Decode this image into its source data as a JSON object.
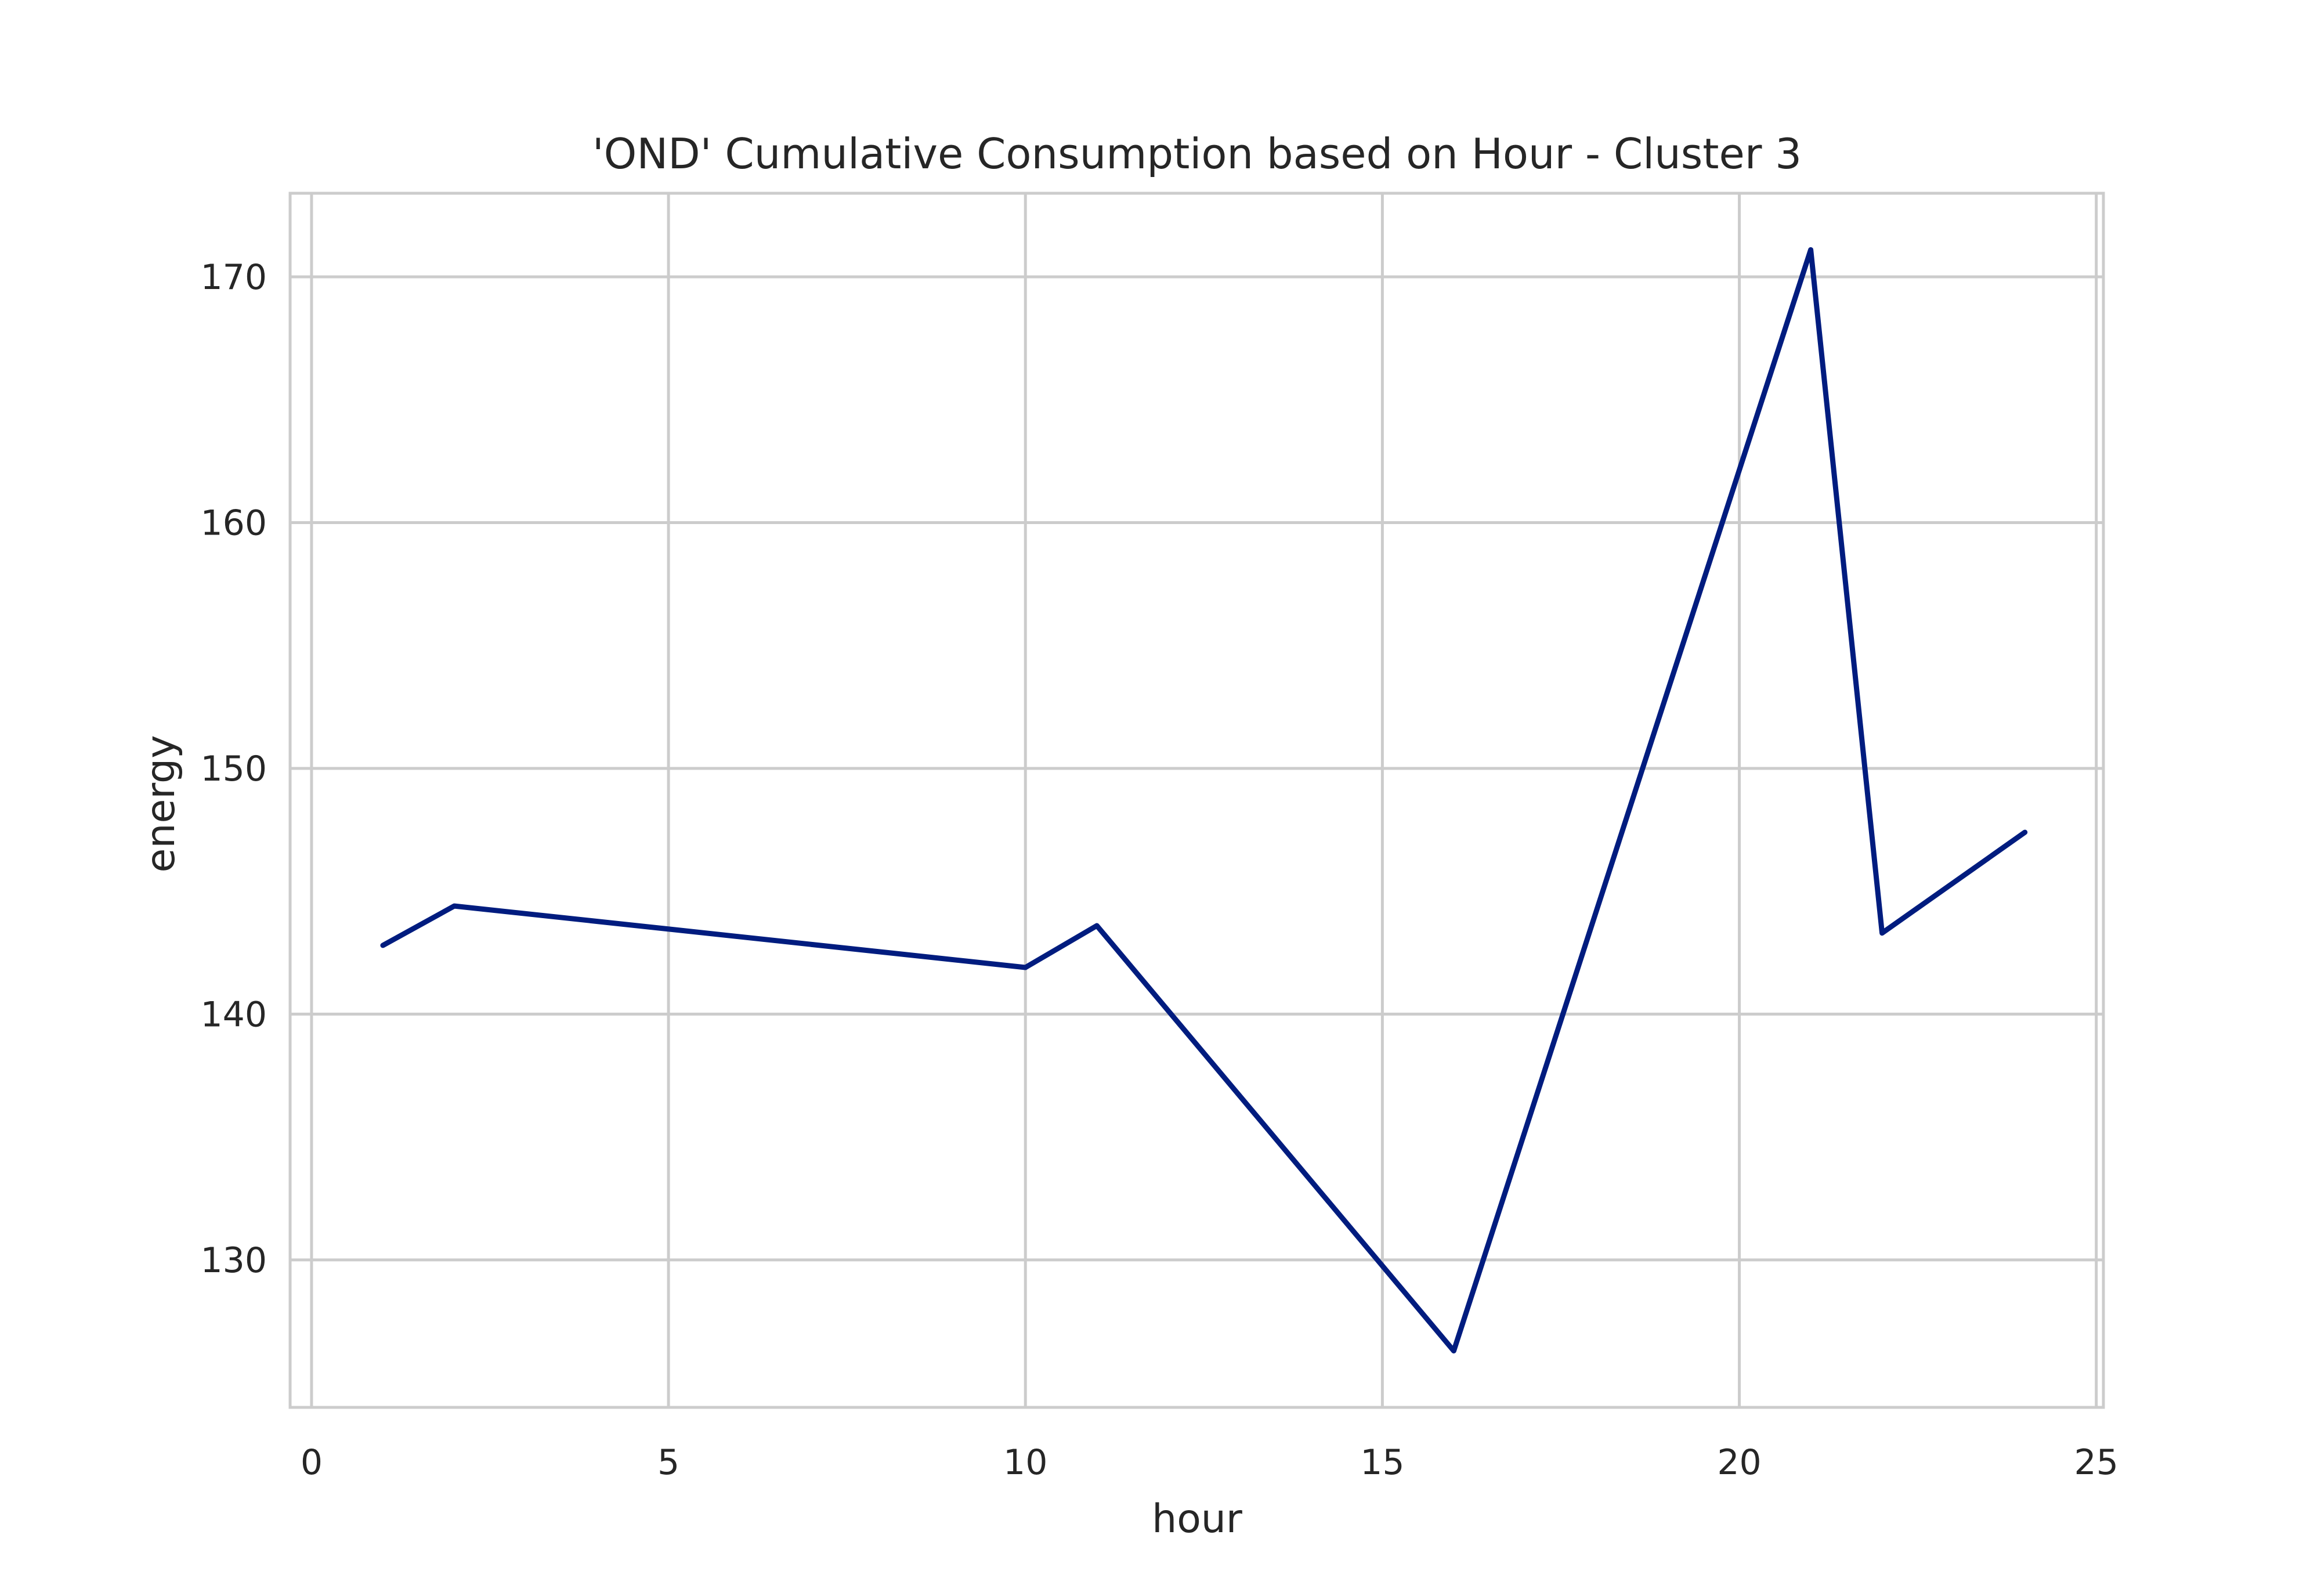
{
  "chart_data": {
    "type": "line",
    "title": "'OND' Cumulative Consumption based on Hour - Cluster 3",
    "xlabel": "hour",
    "ylabel": "energy",
    "xlim": [
      -0.3,
      25.1
    ],
    "ylim": [
      124,
      173.4
    ],
    "xticks": [
      0,
      5,
      10,
      15,
      20,
      25
    ],
    "yticks": [
      130,
      140,
      150,
      160,
      170
    ],
    "xtick_labels": [
      "0",
      "5",
      "10",
      "15",
      "20",
      "25"
    ],
    "ytick_labels": [
      "130",
      "140",
      "150",
      "160",
      "170"
    ],
    "grid": true,
    "series": [
      {
        "color": "#001c7f",
        "x": [
          1,
          2,
          10,
          11,
          16,
          21,
          22,
          24
        ],
        "y": [
          142.8,
          144.4,
          141.9,
          143.6,
          126.3,
          171.1,
          143.3,
          147.4
        ]
      }
    ]
  }
}
